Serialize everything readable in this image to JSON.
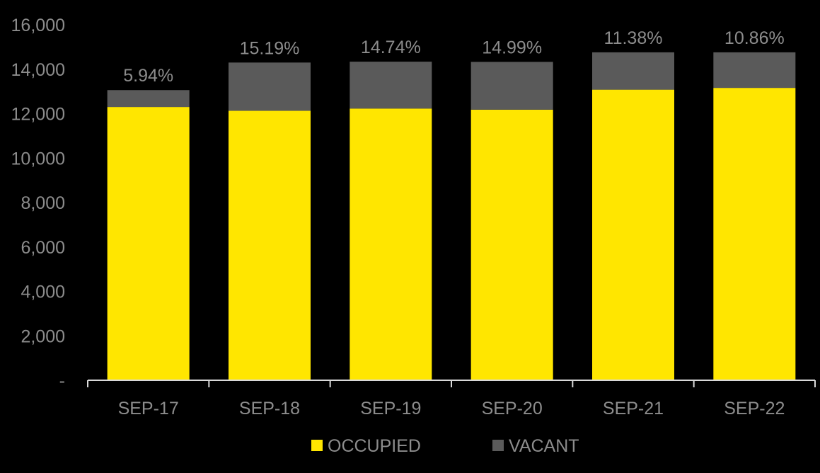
{
  "chart_data": {
    "type": "bar",
    "stacked": true,
    "title": "",
    "xlabel": "",
    "ylabel": "",
    "categories": [
      "SEP-17",
      "SEP-18",
      "SEP-19",
      "SEP-20",
      "SEP-21",
      "SEP-22"
    ],
    "series": [
      {
        "name": "OCCUPIED",
        "color": "#ffe600",
        "values": [
          12300,
          12130,
          12230,
          12180,
          13080,
          13160
        ]
      },
      {
        "name": "VACANT",
        "color": "#5a5a5a",
        "values": [
          760,
          2170,
          2110,
          2150,
          1680,
          1600
        ]
      }
    ],
    "data_labels": [
      "5.94%",
      "15.19%",
      "14.74%",
      "14.99%",
      "11.38%",
      "10.86%"
    ],
    "ylim": [
      0,
      16000
    ],
    "y_ticks": [
      0,
      2000,
      4000,
      6000,
      8000,
      10000,
      12000,
      14000,
      16000
    ],
    "y_tick_labels": [
      "-",
      "2,000",
      "4,000",
      "6,000",
      "8,000",
      "10,000",
      "12,000",
      "14,000",
      "16,000"
    ],
    "grid": false,
    "legend_position": "bottom",
    "background": "#000000",
    "axis_color": "#d9d9d9",
    "text_color": "#8c8c8c"
  }
}
